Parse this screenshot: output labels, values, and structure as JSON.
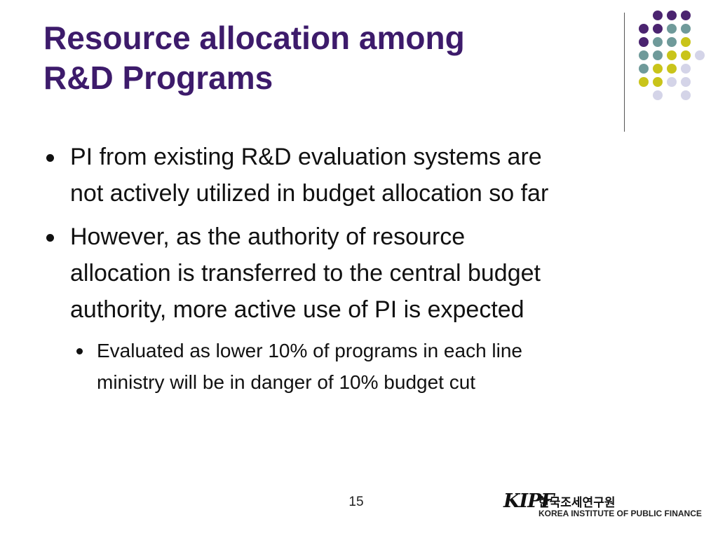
{
  "title": {
    "line1": "Resource allocation among",
    "line2": "R&D Programs"
  },
  "bullets": [
    {
      "lines": [
        "PI from existing R&D evaluation systems are",
        "not actively utilized in budget allocation so far"
      ]
    },
    {
      "lines": [
        "However, as the authority of resource",
        "allocation is transferred to the central budget",
        "authority, more active use of PI is expected"
      ]
    }
  ],
  "sub_bullets": [
    {
      "lines": [
        "Evaluated as lower 10% of programs in each line",
        "ministry will be in danger of 10% budget cut"
      ]
    }
  ],
  "page_number": "15",
  "logo": {
    "mark": "KIPF",
    "korean": "한국조세연구원",
    "english": "KOREA INSTITUTE OF PUBLIC FINANCE"
  },
  "colors": {
    "title": "#3d1b6b",
    "dot_purple": "#4b2470",
    "dot_teal": "#6f9a9a",
    "dot_yellow": "#c9c41a",
    "dot_lavender": "#d4d4e8"
  }
}
